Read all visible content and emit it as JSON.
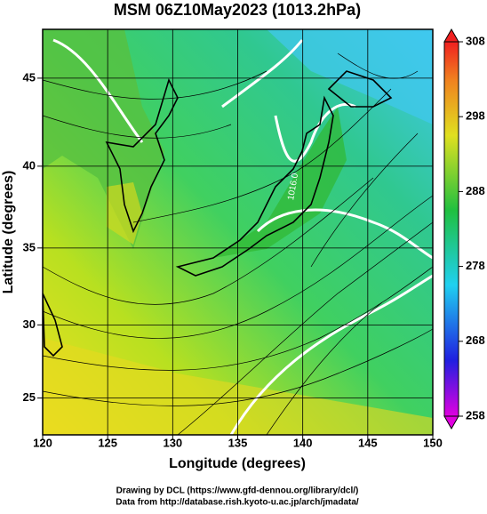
{
  "chart_data": {
    "type": "map",
    "title": "MSM 06Z10May2023 (1013.2hPa)",
    "xlabel": "Longitude (degrees)",
    "ylabel": "Latitude  (degrees)",
    "projection": "mercator",
    "xlim": [
      120,
      150
    ],
    "xticks": [
      120,
      125,
      130,
      135,
      140,
      145,
      150
    ],
    "ylim": [
      22.4,
      47.6
    ],
    "yticks": [
      25,
      30,
      35,
      40,
      45
    ],
    "contour_label": "1016.0",
    "colorbar": {
      "lim": [
        258,
        308
      ],
      "ticks": [
        258,
        268,
        278,
        288,
        298,
        308
      ]
    },
    "footer": [
      "Drawing by DCL (https://www.gfd-dennou.org/library/dcl/)",
      "Data from http://database.rish.kyoto-u.ac.jp/arch/jmadata/"
    ]
  }
}
